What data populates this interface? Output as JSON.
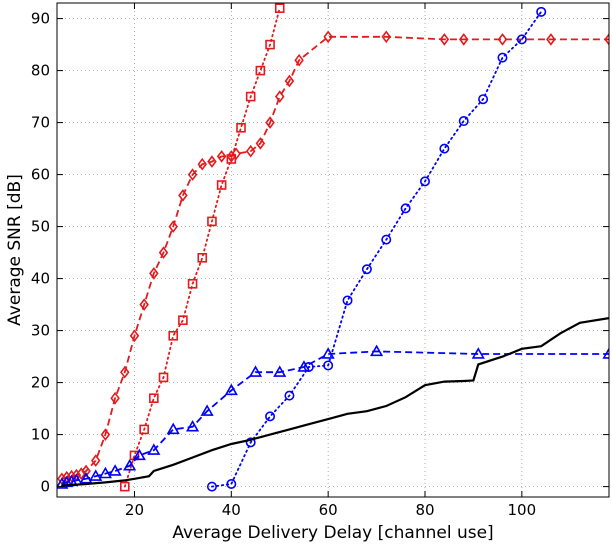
{
  "chart_data": {
    "type": "line",
    "xlabel": "Average Delivery Delay [channel use]",
    "ylabel": "Average SNR [dB]",
    "xlim": [
      4,
      118
    ],
    "ylim": [
      -2,
      93
    ],
    "xticks": [
      20,
      40,
      60,
      80,
      100
    ],
    "yticks": [
      0,
      10,
      20,
      30,
      40,
      50,
      60,
      70,
      80,
      90
    ],
    "grid": true,
    "series": [
      {
        "color": "#e41a1c",
        "line": "dashed",
        "marker": "diamond",
        "x": [
          5,
          6,
          7,
          8,
          9,
          10,
          12,
          14,
          16,
          18,
          20,
          22,
          24,
          26,
          28,
          30,
          32,
          34,
          36,
          38,
          40,
          41,
          44,
          46,
          48,
          50,
          52,
          54,
          60,
          72,
          84,
          88,
          96,
          106,
          118
        ],
        "y": [
          1.5,
          1.8,
          2,
          2.2,
          2.5,
          3,
          5,
          10,
          17,
          22,
          29,
          35,
          41,
          45,
          50,
          56,
          60,
          62,
          62.5,
          63.5,
          63.5,
          64,
          64.5,
          66,
          70,
          75,
          78,
          82,
          86.5,
          86.5,
          86,
          86,
          86,
          86,
          86
        ]
      },
      {
        "color": "#e41a1c",
        "line": "dotted",
        "marker": "square",
        "x": [
          18,
          20,
          22,
          24,
          26,
          28,
          30,
          32,
          34,
          36,
          38,
          40,
          42,
          44,
          46,
          48,
          50
        ],
        "y": [
          0,
          6,
          11,
          17,
          21,
          29,
          32,
          39,
          44,
          51,
          58,
          63,
          69,
          75,
          80,
          85,
          92
        ]
      },
      {
        "color": "#0000ff",
        "line": "dotted",
        "marker": "circle",
        "x": [
          36,
          40,
          44,
          48,
          52,
          56,
          60,
          64,
          68,
          72,
          76,
          80,
          84,
          88,
          92,
          96,
          100,
          104
        ],
        "y": [
          0,
          0.5,
          8.5,
          13.5,
          17.5,
          23,
          23.3,
          35.8,
          41.8,
          47.5,
          53.5,
          58.7,
          65,
          70.3,
          74.5,
          82.5,
          86,
          91.3
        ]
      },
      {
        "color": "#0000ff",
        "line": "dashed",
        "marker": "triangle",
        "x": [
          5,
          6,
          7,
          8,
          10,
          12,
          14,
          16,
          19,
          21,
          24,
          28,
          32,
          35,
          40,
          45,
          50,
          55,
          60,
          70,
          91,
          118
        ],
        "y": [
          0.5,
          0.8,
          1,
          1.2,
          1.5,
          2,
          2.5,
          3,
          4,
          6,
          7,
          11,
          11.5,
          14.5,
          18.5,
          22,
          22,
          23,
          25.5,
          26,
          25.5,
          25.5
        ]
      },
      {
        "color": "#000000",
        "line": "solid",
        "marker": "none",
        "x": [
          5,
          10,
          14,
          18,
          20,
          23,
          24,
          28,
          32,
          36,
          40,
          44,
          48,
          52,
          56,
          60,
          64,
          68,
          72,
          76,
          80,
          84,
          88,
          90,
          91,
          96,
          100,
          104,
          108,
          112,
          118
        ],
        "y": [
          0.2,
          0.5,
          0.8,
          1.2,
          1.5,
          2,
          3,
          4.2,
          5.6,
          7,
          8.2,
          9,
          10,
          11,
          12,
          13,
          14,
          14.5,
          15.5,
          17.2,
          19.5,
          20.2,
          20.3,
          20.4,
          23.5,
          25,
          26.5,
          27,
          29.5,
          31.5,
          32.4
        ]
      }
    ]
  }
}
